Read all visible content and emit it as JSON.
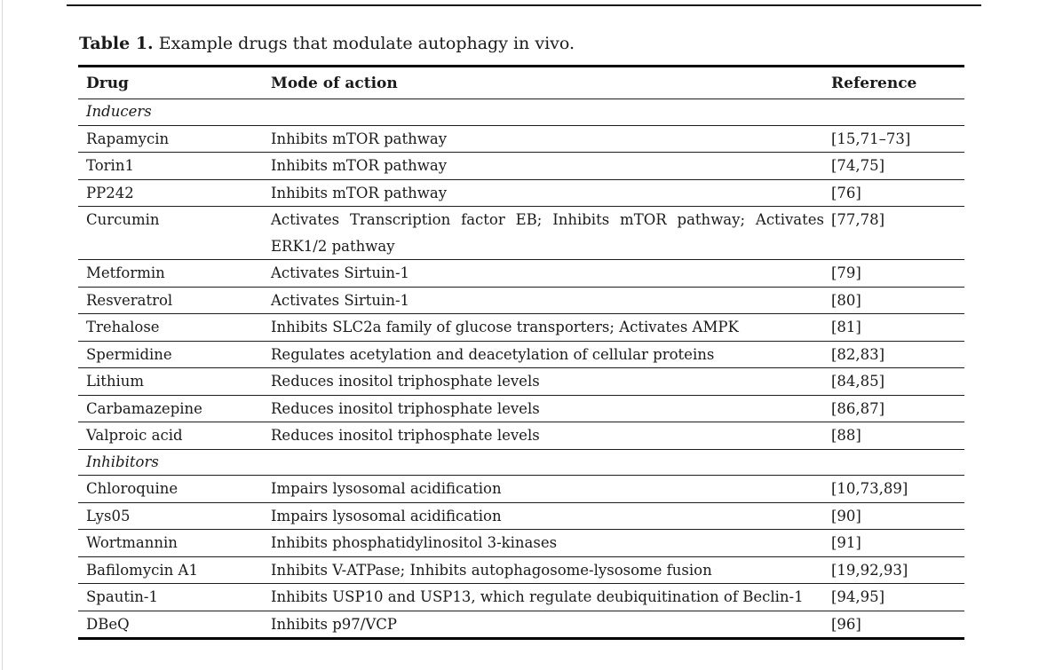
{
  "colors": {
    "rule": "#000000",
    "inner-rule": "#1c1c1c",
    "text": "#1a1a1a",
    "page-edge": "#d9d9d9",
    "page-top": "#141414",
    "background": "#ffffff"
  },
  "caption": {
    "label": "Table 1.",
    "text": "Example drugs that modulate autophagy in vivo."
  },
  "table": {
    "headers": [
      "Drug",
      "Mode of action",
      "Reference"
    ],
    "rows": [
      {
        "type": "section",
        "label": "Inducers"
      },
      {
        "type": "row",
        "drug": "Rapamycin",
        "mode": "Inhibits mTOR pathway",
        "ref": "[15,71–73]"
      },
      {
        "type": "row",
        "drug": "Torin1",
        "mode": "Inhibits mTOR pathway",
        "ref": "[74,75]"
      },
      {
        "type": "row",
        "drug": "PP242",
        "mode": "Inhibits mTOR pathway",
        "ref": "[76]"
      },
      {
        "type": "row",
        "drug": "Curcumin",
        "mode": "Activates Transcription factor EB; Inhibits mTOR pathway; Activates ERK1/2 pathway",
        "ref": "[77,78]"
      },
      {
        "type": "row",
        "drug": "Metformin",
        "mode": "Activates Sirtuin-1",
        "ref": "[79]"
      },
      {
        "type": "row",
        "drug": "Resveratrol",
        "mode": "Activates Sirtuin-1",
        "ref": "[80]"
      },
      {
        "type": "row",
        "drug": "Trehalose",
        "mode": "Inhibits SLC2a family of glucose transporters; Activates AMPK",
        "ref": "[81]"
      },
      {
        "type": "row",
        "drug": "Spermidine",
        "mode": "Regulates acetylation and deacetylation of cellular proteins",
        "ref": "[82,83]"
      },
      {
        "type": "row",
        "drug": "Lithium",
        "mode": "Reduces inositol triphosphate levels",
        "ref": "[84,85]"
      },
      {
        "type": "row",
        "drug": "Carbamazepine",
        "mode": "Reduces inositol triphosphate levels",
        "ref": "[86,87]"
      },
      {
        "type": "row",
        "drug": "Valproic acid",
        "mode": "Reduces inositol triphosphate levels",
        "ref": "[88]"
      },
      {
        "type": "section",
        "label": "Inhibitors"
      },
      {
        "type": "row",
        "drug": "Chloroquine",
        "mode": "Impairs lysosomal acidification",
        "ref": "[10,73,89]"
      },
      {
        "type": "row",
        "drug": "Lys05",
        "mode": "Impairs lysosomal acidification",
        "ref": "[90]"
      },
      {
        "type": "row",
        "drug": "Wortmannin",
        "mode": "Inhibits phosphatidylinositol 3-kinases",
        "ref": "[91]"
      },
      {
        "type": "row",
        "drug": "Bafilomycin A1",
        "mode": "Inhibits V-ATPase; Inhibits autophagosome-lysosome fusion",
        "ref": "[19,92,93]"
      },
      {
        "type": "row",
        "drug": "Spautin-1",
        "mode": "Inhibits USP10 and USP13, which regulate deubiquitination of Beclin-1",
        "ref": "[94,95]"
      },
      {
        "type": "row",
        "drug": "DBeQ",
        "mode": "Inhibits p97/VCP",
        "ref": "[96]"
      }
    ]
  }
}
